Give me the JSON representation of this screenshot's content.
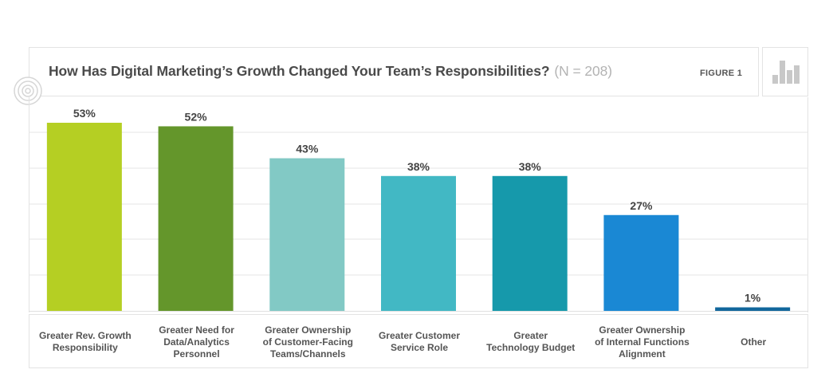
{
  "header": {
    "title": "How Has Digital Marketing’s Growth Changed Your Team’s Responsibilities?",
    "subtitle": "(N = 208)",
    "figure_label": "FIGURE 1"
  },
  "icons": {
    "header_icon": "bar-chart-icon",
    "target_icon": "concentric-circles-icon"
  },
  "chart_data": {
    "type": "bar",
    "title": "How Has Digital Marketing’s Growth Changed Your Team’s Responsibilities?",
    "subtitle": "(N = 208)",
    "categories": [
      "Greater Rev. Growth Responsibility",
      "Greater Need for Data/Analytics Personnel",
      "Greater Ownership of Customer-Facing Teams/Channels",
      "Greater Customer Service Role",
      "Greater Technology Budget",
      "Greater Ownership of Internal Functions Alignment",
      "Other"
    ],
    "values": [
      53,
      52,
      43,
      38,
      38,
      27,
      1
    ],
    "data_labels": [
      "53%",
      "52%",
      "43%",
      "38%",
      "38%",
      "27%",
      "1%"
    ],
    "colors": [
      "#b5cf23",
      "#64962b",
      "#82c9c5",
      "#42b8c4",
      "#1699ab",
      "#1a88d4",
      "#12679c"
    ],
    "ylim": [
      0,
      60
    ],
    "grid": true,
    "xlabel": "",
    "ylabel": ""
  },
  "category_labels": [
    "Greater Rev. Growth\nResponsibility",
    "Greater Need for\nData/Analytics\nPersonnel",
    "Greater Ownership\nof Customer-Facing\nTeams/Channels",
    "Greater Customer\nService Role",
    "Greater\nTechnology Budget",
    "Greater Ownership\nof Internal Functions\nAlignment",
    "Other"
  ]
}
